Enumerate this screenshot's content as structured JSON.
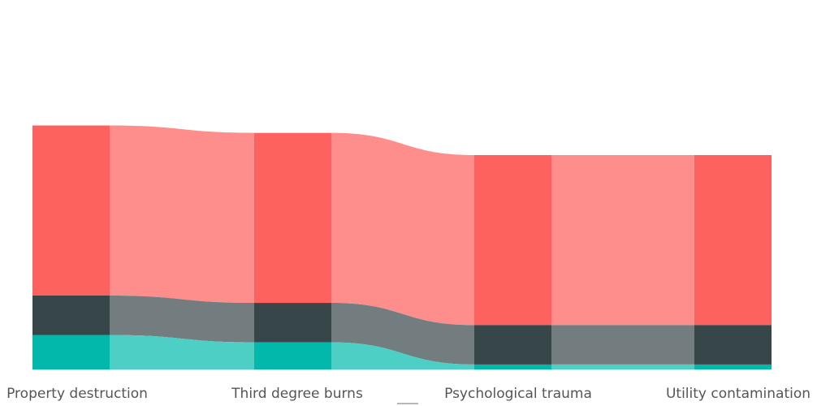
{
  "chart_data": {
    "type": "area",
    "categories": [
      "Property destruction",
      "Third degree burns",
      "Psychological trauma",
      "Utility contamination"
    ],
    "series": [
      {
        "values": [
          69,
          69,
          69,
          69
        ],
        "color": "#fd625e"
      },
      {
        "values": [
          16,
          16,
          16,
          16
        ],
        "color": "#374649"
      },
      {
        "values": [
          14,
          11,
          2,
          2
        ],
        "color": "#01b8aa"
      }
    ],
    "ribbon_colors": [
      "#fe8e8c",
      "#737d7f",
      "#4dcfc5"
    ],
    "xlabel": "",
    "ylabel": "",
    "grid": false,
    "legend": "none"
  }
}
